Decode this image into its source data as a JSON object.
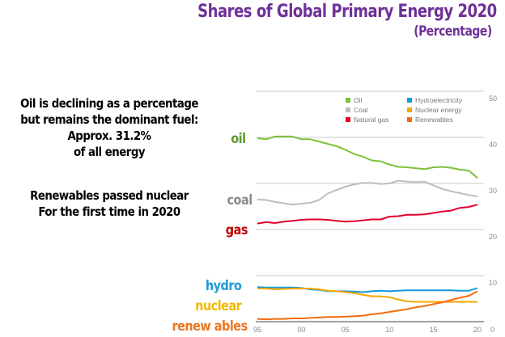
{
  "header": {
    "title": "Shares of Global Primary Energy 2020",
    "subtitle": "(Percentage)",
    "title_color": "#6f3198"
  },
  "notes": {
    "block1": [
      "Oil is declining as a percentage",
      "but remains the dominant fuel:",
      "Approx. 31.2%",
      "of all energy"
    ],
    "block2": [
      "Renewables passed nuclear",
      "For the first time in 2020"
    ]
  },
  "fuel_labels": [
    {
      "key": "oil",
      "text": "oil",
      "color": "#5a9a2a"
    },
    {
      "key": "coal",
      "text": "coal",
      "color": "#8c8c8c"
    },
    {
      "key": "gas",
      "text": "gas",
      "color": "#c00000"
    },
    {
      "key": "hydro",
      "text": "hydro",
      "color": "#1f9bd7"
    },
    {
      "key": "nuclear",
      "text": "nuclear",
      "color": "#f5b800"
    },
    {
      "key": "renewables",
      "text": "renew ables",
      "color": "#e87722"
    }
  ],
  "chart_data": {
    "type": "line",
    "title": "Shares of Global Primary Energy 2020",
    "subtitle": "(Percentage)",
    "xlabel": "",
    "ylabel": "",
    "x": [
      1995,
      1996,
      1997,
      1998,
      1999,
      2000,
      2001,
      2002,
      2003,
      2004,
      2005,
      2006,
      2007,
      2008,
      2009,
      2010,
      2011,
      2012,
      2013,
      2014,
      2015,
      2016,
      2017,
      2018,
      2019,
      2020
    ],
    "xlim": [
      1995,
      2020
    ],
    "ylim": [
      0,
      50
    ],
    "x_tick_labels": [
      "95",
      "00",
      "05",
      "10",
      "15",
      "20"
    ],
    "x_tick_values": [
      1995,
      2000,
      2005,
      2010,
      2015,
      2020
    ],
    "y_ticks": [
      0,
      10,
      20,
      30,
      40,
      50
    ],
    "y_axis_position": "right",
    "grid": true,
    "legend_position": "top-right",
    "series": [
      {
        "name": "Oil",
        "color": "#7dc13a",
        "values": [
          39.8,
          39.6,
          40.2,
          40.2,
          40.2,
          39.6,
          39.6,
          39.1,
          38.6,
          38.1,
          37.3,
          36.4,
          35.8,
          35.0,
          34.8,
          34.1,
          33.6,
          33.5,
          33.3,
          33.1,
          33.5,
          33.6,
          33.4,
          33.0,
          32.8,
          31.2
        ]
      },
      {
        "name": "Coal",
        "color": "#bdbdbd",
        "values": [
          26.5,
          26.4,
          26.0,
          25.7,
          25.4,
          25.6,
          25.8,
          26.4,
          27.8,
          28.6,
          29.3,
          29.8,
          30.1,
          30.1,
          29.9,
          30.0,
          30.6,
          30.4,
          30.3,
          30.4,
          29.6,
          28.8,
          28.3,
          27.9,
          27.5,
          27.2
        ]
      },
      {
        "name": "Natural gas",
        "color": "#e4002b",
        "values": [
          21.3,
          21.6,
          21.4,
          21.7,
          21.9,
          22.1,
          22.2,
          22.2,
          22.1,
          21.9,
          21.7,
          21.8,
          22.0,
          22.2,
          22.2,
          22.8,
          22.9,
          23.2,
          23.2,
          23.3,
          23.6,
          23.9,
          24.1,
          24.7,
          24.9,
          25.4
        ]
      },
      {
        "name": "Hydroelectricity",
        "color": "#119ad9",
        "values": [
          7.5,
          7.4,
          7.4,
          7.4,
          7.4,
          7.3,
          7.0,
          6.9,
          6.6,
          6.6,
          6.6,
          6.5,
          6.4,
          6.6,
          6.7,
          6.6,
          6.7,
          6.8,
          6.8,
          6.8,
          6.8,
          6.8,
          6.8,
          6.7,
          6.7,
          7.3
        ]
      },
      {
        "name": "Nuclear energy",
        "color": "#f7a600",
        "values": [
          7.2,
          7.2,
          7.0,
          7.1,
          7.2,
          7.2,
          7.2,
          7.0,
          6.7,
          6.6,
          6.4,
          6.2,
          5.8,
          5.5,
          5.5,
          5.3,
          4.8,
          4.4,
          4.3,
          4.3,
          4.3,
          4.3,
          4.3,
          4.3,
          4.3,
          4.3
        ]
      },
      {
        "name": "Renewables",
        "color": "#f26b0f",
        "values": [
          0.6,
          0.5,
          0.6,
          0.6,
          0.7,
          0.7,
          0.8,
          0.9,
          1.0,
          1.0,
          1.1,
          1.2,
          1.3,
          1.6,
          1.8,
          2.1,
          2.4,
          2.7,
          3.1,
          3.4,
          3.8,
          4.2,
          4.7,
          5.2,
          5.6,
          6.6
        ]
      }
    ]
  }
}
